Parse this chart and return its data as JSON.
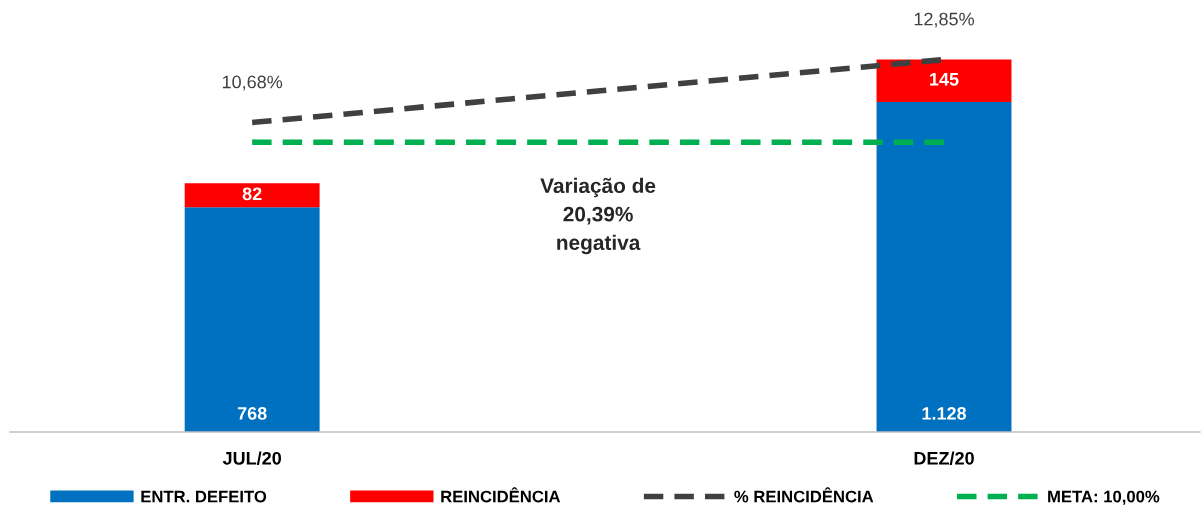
{
  "chart_data": {
    "type": "bar",
    "stacked": true,
    "categories": [
      "JUL/20",
      "DEZ/20"
    ],
    "series": [
      {
        "name": "ENTR. DEFEITO",
        "color": "#0070c0",
        "values": [
          768,
          1128
        ],
        "value_labels": [
          "768",
          "1.128"
        ]
      },
      {
        "name": "REINCIDÊNCIA",
        "color": "#ff0000",
        "values": [
          82,
          145
        ],
        "value_labels": [
          "82",
          "145"
        ]
      },
      {
        "name": "% REINCIDÊNCIA",
        "type": "line",
        "axis": "y2",
        "color": "#404040",
        "line_style": "dashed",
        "values": [
          10.68,
          12.85
        ],
        "value_labels": [
          "10,68%",
          "12,85%"
        ]
      },
      {
        "name": "META: 10,00%",
        "type": "line",
        "axis": "y2",
        "color": "#00b050",
        "line_style": "dashed",
        "values": [
          10.0,
          10.0
        ]
      }
    ],
    "tick_labels": "x",
    "grid": false,
    "legend": "bottom",
    "annotations": [
      "Variação de\n20,39%\nnegativa"
    ]
  }
}
